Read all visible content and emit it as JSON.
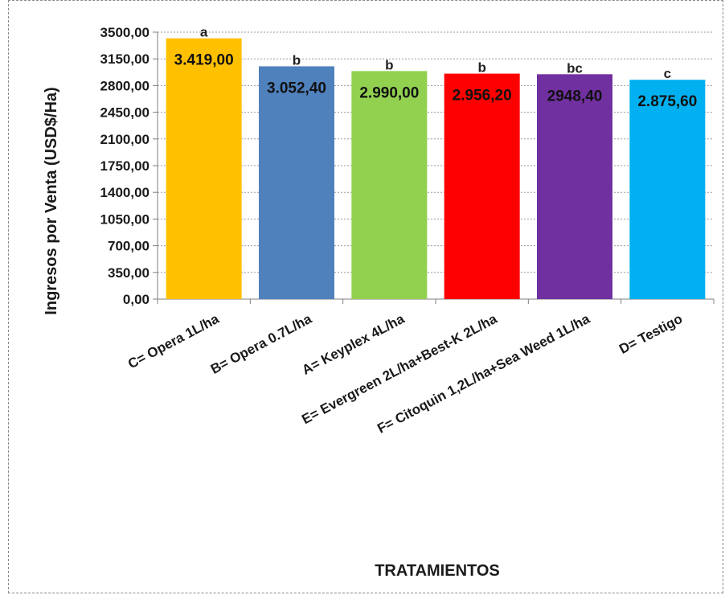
{
  "chart_data": {
    "type": "bar",
    "title": "",
    "xlabel": "TRATAMIENTOS",
    "ylabel": "Ingresos por Venta (USD$/Ha)",
    "ylim": [
      0,
      3500
    ],
    "yticks": [
      "0,00",
      "350,00",
      "700,00",
      "1050,00",
      "1400,00",
      "1750,00",
      "2100,00",
      "2450,00",
      "2800,00",
      "3150,00",
      "3500,00"
    ],
    "ytick_values": [
      0,
      350,
      700,
      1050,
      1400,
      1750,
      2100,
      2450,
      2800,
      3150,
      3500
    ],
    "grid": true,
    "legend": "none",
    "categories": [
      "C= Opera 1L/ha",
      "B= Opera 0.7L/ha",
      "A= Keyplex 4L/ha",
      "E= Evergreen 2L/ha+Best-K 2L/ha",
      "F= Citoquin 1,2L/ha+Sea Weed 1L/ha",
      "D= Testigo"
    ],
    "values": [
      3419.0,
      3052.4,
      2990.0,
      2956.2,
      2948.4,
      2875.6
    ],
    "value_labels": [
      "3.419,00",
      "3.052,40",
      "2.990,00",
      "2.956,20",
      "2948,40",
      "2.875,60"
    ],
    "significance_labels": [
      "a",
      "b",
      "b",
      "b",
      "bc",
      "c"
    ],
    "colors": [
      "#FFC000",
      "#4F81BD",
      "#92D050",
      "#FF0000",
      "#7030A0",
      "#00B0F0"
    ]
  }
}
